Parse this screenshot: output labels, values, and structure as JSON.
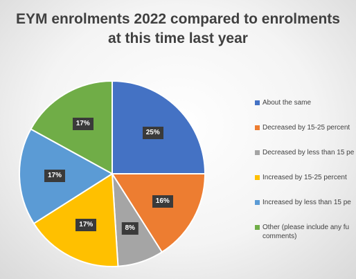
{
  "chart_data": {
    "type": "pie",
    "title_lines": [
      "EYM enrolments 2022 compared to enrolments",
      "at this time last year"
    ],
    "slices": [
      {
        "label": "About the same",
        "value": 25,
        "data_label": "25%",
        "color": "#4472c4"
      },
      {
        "label": "Decreased by 15-25 percent",
        "value": 16,
        "data_label": "16%",
        "color": "#ed7d31"
      },
      {
        "label": "Decreased by less than 15 pe",
        "value": 8,
        "data_label": "8%",
        "color": "#a5a5a5"
      },
      {
        "label": "Increased by 15-25 percent",
        "value": 17,
        "data_label": "17%",
        "color": "#ffc000"
      },
      {
        "label": "Increased by less than 15 pe",
        "value": 17,
        "data_label": "17%",
        "color": "#5b9bd5"
      },
      {
        "label": "Other (please include any fu\ncomments)",
        "value": 17,
        "data_label": "17%",
        "color": "#70ad47"
      }
    ],
    "legend_position": "right"
  }
}
